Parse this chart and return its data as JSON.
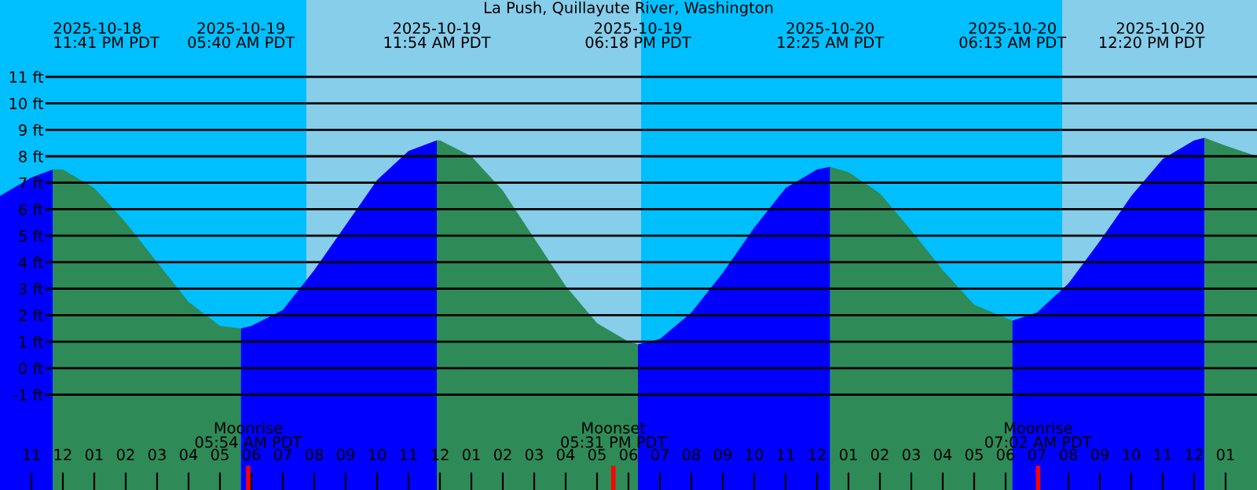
{
  "chart_data": {
    "type": "area",
    "title": "La Push, Quillayute River, Washington",
    "series": [
      {
        "color": "#0000ff",
        "x": [
          "2025-10-18T22:00",
          "2025-10-18T23:00",
          "2025-10-18T23:41"
        ],
        "values": [
          6.5,
          7.2,
          7.5
        ]
      },
      {
        "color": "#2e8b57",
        "x": [
          "2025-10-18T23:41",
          "2025-10-19T00:00",
          "2025-10-19T01:00",
          "2025-10-19T02:00",
          "2025-10-19T03:00",
          "2025-10-19T04:00",
          "2025-10-19T05:00",
          "2025-10-19T05:40"
        ],
        "values": [
          7.5,
          7.5,
          6.8,
          5.5,
          4.0,
          2.5,
          1.6,
          1.5
        ]
      },
      {
        "color": "#0000ff",
        "x": [
          "2025-10-19T05:40",
          "2025-10-19T06:00",
          "2025-10-19T07:00",
          "2025-10-19T08:00",
          "2025-10-19T09:00",
          "2025-10-19T10:00",
          "2025-10-19T11:00",
          "2025-10-19T11:54"
        ],
        "values": [
          1.5,
          1.6,
          2.2,
          3.7,
          5.4,
          7.1,
          8.2,
          8.6
        ]
      },
      {
        "color": "#2e8b57",
        "x": [
          "2025-10-19T11:54",
          "2025-10-19T12:00",
          "2025-10-19T13:00",
          "2025-10-19T14:00",
          "2025-10-19T15:00",
          "2025-10-19T16:00",
          "2025-10-19T17:00",
          "2025-10-19T18:00",
          "2025-10-19T18:18"
        ],
        "values": [
          8.6,
          8.6,
          8.0,
          6.7,
          4.9,
          3.1,
          1.7,
          1.0,
          0.9
        ]
      },
      {
        "color": "#0000ff",
        "x": [
          "2025-10-19T18:18",
          "2025-10-19T19:00",
          "2025-10-19T20:00",
          "2025-10-19T21:00",
          "2025-10-19T22:00",
          "2025-10-19T23:00",
          "2025-10-20T00:00",
          "2025-10-20T00:25"
        ],
        "values": [
          0.9,
          1.1,
          2.1,
          3.6,
          5.3,
          6.8,
          7.5,
          7.6
        ]
      },
      {
        "color": "#2e8b57",
        "x": [
          "2025-10-20T00:25",
          "2025-10-20T01:00",
          "2025-10-20T02:00",
          "2025-10-20T03:00",
          "2025-10-20T04:00",
          "2025-10-20T05:00",
          "2025-10-20T06:00",
          "2025-10-20T06:13"
        ],
        "values": [
          7.6,
          7.4,
          6.6,
          5.2,
          3.7,
          2.4,
          1.9,
          1.8
        ]
      },
      {
        "color": "#0000ff",
        "x": [
          "2025-10-20T06:13",
          "2025-10-20T07:00",
          "2025-10-20T08:00",
          "2025-10-20T09:00",
          "2025-10-20T10:00",
          "2025-10-20T11:00",
          "2025-10-20T12:00",
          "2025-10-20T12:20"
        ],
        "values": [
          1.8,
          2.1,
          3.2,
          4.8,
          6.5,
          7.9,
          8.6,
          8.7
        ]
      },
      {
        "color": "#2e8b57",
        "x": [
          "2025-10-20T12:20",
          "2025-10-20T13:00",
          "2025-10-20T14:00"
        ],
        "values": [
          8.7,
          8.4,
          8.0
        ]
      }
    ],
    "xlim": [
      "2025-10-18T22:00",
      "2025-10-20T14:00"
    ],
    "xticks": [
      {
        "value": "2025-10-18T23:00",
        "label": "11"
      },
      {
        "value": "2025-10-19T00:00",
        "label": "12"
      },
      {
        "value": "2025-10-19T01:00",
        "label": "01"
      },
      {
        "value": "2025-10-19T02:00",
        "label": "02"
      },
      {
        "value": "2025-10-19T03:00",
        "label": "03"
      },
      {
        "value": "2025-10-19T04:00",
        "label": "04"
      },
      {
        "value": "2025-10-19T05:00",
        "label": "05"
      },
      {
        "value": "2025-10-19T06:00",
        "label": "06"
      },
      {
        "value": "2025-10-19T07:00",
        "label": "07"
      },
      {
        "value": "2025-10-19T08:00",
        "label": "08"
      },
      {
        "value": "2025-10-19T09:00",
        "label": "09"
      },
      {
        "value": "2025-10-19T10:00",
        "label": "10"
      },
      {
        "value": "2025-10-19T11:00",
        "label": "11"
      },
      {
        "value": "2025-10-19T12:00",
        "label": "12"
      },
      {
        "value": "2025-10-19T13:00",
        "label": "01"
      },
      {
        "value": "2025-10-19T14:00",
        "label": "02"
      },
      {
        "value": "2025-10-19T15:00",
        "label": "03"
      },
      {
        "value": "2025-10-19T16:00",
        "label": "04"
      },
      {
        "value": "2025-10-19T17:00",
        "label": "05"
      },
      {
        "value": "2025-10-19T18:00",
        "label": "06"
      },
      {
        "value": "2025-10-19T19:00",
        "label": "07"
      },
      {
        "value": "2025-10-19T20:00",
        "label": "08"
      },
      {
        "value": "2025-10-19T21:00",
        "label": "09"
      },
      {
        "value": "2025-10-19T22:00",
        "label": "10"
      },
      {
        "value": "2025-10-19T23:00",
        "label": "11"
      },
      {
        "value": "2025-10-20T00:00",
        "label": "12"
      },
      {
        "value": "2025-10-20T01:00",
        "label": "01"
      },
      {
        "value": "2025-10-20T02:00",
        "label": "02"
      },
      {
        "value": "2025-10-20T03:00",
        "label": "03"
      },
      {
        "value": "2025-10-20T04:00",
        "label": "04"
      },
      {
        "value": "2025-10-20T05:00",
        "label": "05"
      },
      {
        "value": "2025-10-20T06:00",
        "label": "06"
      },
      {
        "value": "2025-10-20T07:00",
        "label": "07"
      },
      {
        "value": "2025-10-20T08:00",
        "label": "08"
      },
      {
        "value": "2025-10-20T09:00",
        "label": "09"
      },
      {
        "value": "2025-10-20T10:00",
        "label": "10"
      },
      {
        "value": "2025-10-20T11:00",
        "label": "11"
      },
      {
        "value": "2025-10-20T12:00",
        "label": "12"
      },
      {
        "value": "2025-10-20T13:00",
        "label": "01"
      }
    ],
    "ylim": [
      -4.6,
      13.9
    ],
    "yticks": [
      {
        "value": -1,
        "label": "-1 ft"
      },
      {
        "value": 0,
        "label": "0 ft"
      },
      {
        "value": 1,
        "label": "1 ft"
      },
      {
        "value": 2,
        "label": "2 ft"
      },
      {
        "value": 3,
        "label": "3 ft"
      },
      {
        "value": 4,
        "label": "4 ft"
      },
      {
        "value": 5,
        "label": "5 ft"
      },
      {
        "value": 6,
        "label": "6 ft"
      },
      {
        "value": 7,
        "label": "7 ft"
      },
      {
        "value": 8,
        "label": "8 ft"
      },
      {
        "value": 9,
        "label": "9 ft"
      },
      {
        "value": 10,
        "label": "10 ft"
      },
      {
        "value": 11,
        "label": "11 ft"
      }
    ],
    "grid": "y",
    "bands": [
      {
        "axis": "x",
        "from": "2025-10-19T07:45",
        "to": "2025-10-19T18:24",
        "color": "#87ceeb"
      },
      {
        "axis": "x",
        "from": "2025-10-20T07:48",
        "to": "2025-10-20T14:00",
        "color": "#87ceeb"
      }
    ],
    "ref_lines": [
      {
        "axis": "x",
        "value": "2025-10-19T05:54",
        "label": "Moonrise\n05:54 AM PDT",
        "color": "#ff0000"
      },
      {
        "axis": "x",
        "value": "2025-10-19T17:31",
        "label": "Moonset\n05:31 PM PDT",
        "color": "#ff0000"
      },
      {
        "axis": "x",
        "value": "2025-10-20T07:02",
        "label": "Moonrise\n07:02 AM PDT",
        "color": "#ff0000"
      }
    ],
    "annotations": [
      "2025-10-18\n11:41 PM PDT",
      "2025-10-19\n05:40 AM PDT",
      "2025-10-19\n11:54 AM PDT",
      "2025-10-19\n06:18 PM PDT",
      "2025-10-20\n12:25 AM PDT",
      "2025-10-20\n06:13 AM PDT",
      "2025-10-20\n12:20 PM PDT"
    ]
  }
}
